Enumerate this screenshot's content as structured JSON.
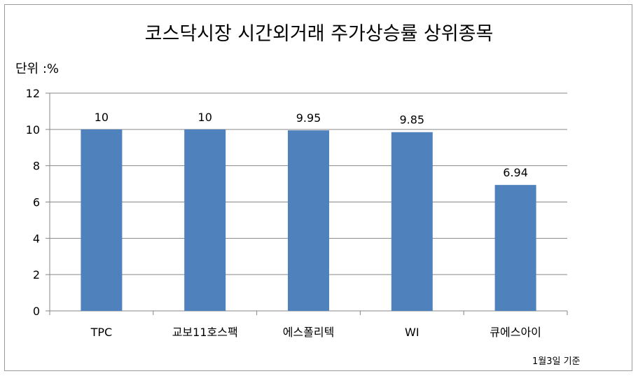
{
  "chart_data": {
    "type": "bar",
    "title": "코스닥시장 시간외거래 주가상승률 상위종목",
    "unit_label": "단위 :%",
    "footnote": "1월3일 기준",
    "categories": [
      "TPC",
      "교보11호스팩",
      "에스폴리텍",
      "WI",
      "큐에스아이"
    ],
    "values": [
      10,
      10,
      9.95,
      9.85,
      6.94
    ],
    "data_labels": [
      "10",
      "10",
      "9.95",
      "9.85",
      "6.94"
    ],
    "ylim": [
      0,
      12
    ],
    "yticks": [
      0,
      2,
      4,
      6,
      8,
      10,
      12
    ],
    "grid": true,
    "legend": "none",
    "bar_color": "#4F81BD",
    "grid_color": "#878787"
  }
}
